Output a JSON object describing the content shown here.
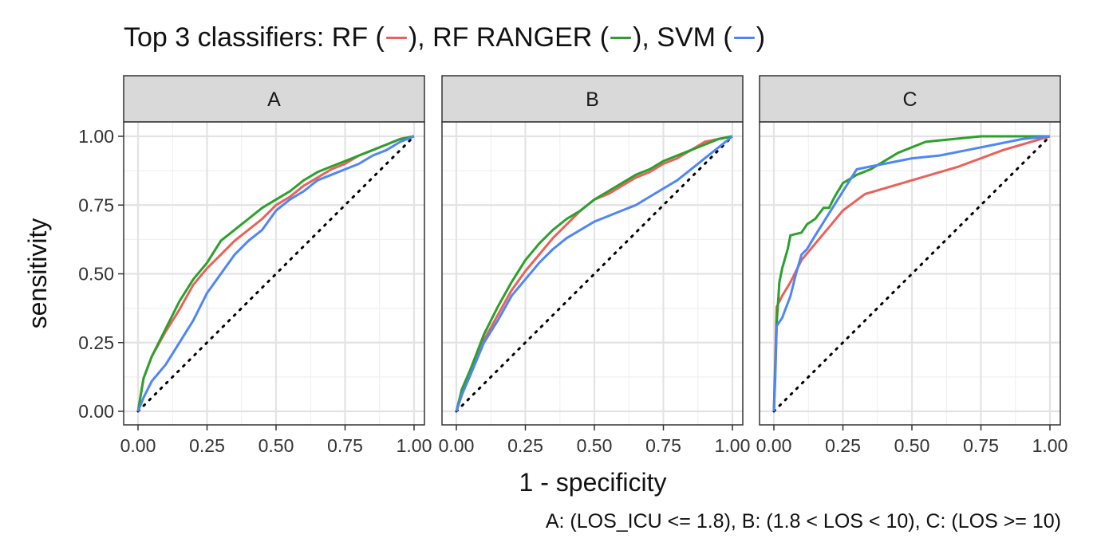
{
  "title": {
    "prefix": "Top 3 classifiers: ",
    "rf_label": "RF (",
    "after_rf": "), RF RANGER (",
    "after_ranger": "), SVM (",
    "end": ")"
  },
  "caption": "A: (LOS_ICU <= 1.8), B: (1.8 < LOS < 10), C: (LOS >= 10)",
  "colors": {
    "RF": "#E8625A",
    "RF RANGER": "#2CA02C",
    "SVM": "#4F86F7"
  },
  "chart_data": {
    "type": "line",
    "xlabel": "1 - specificity",
    "ylabel": "sensitivity",
    "xlim": [
      0,
      1
    ],
    "ylim": [
      0,
      1
    ],
    "xticks": [
      "0.00",
      "0.25",
      "0.50",
      "0.75",
      "1.00"
    ],
    "yticks": [
      "0.00",
      "0.25",
      "0.50",
      "0.75",
      "1.00"
    ],
    "grid": true,
    "reference_line": "dotted diagonal",
    "panels": [
      {
        "name": "A",
        "series": [
          {
            "name": "RF",
            "points": [
              [
                0,
                0
              ],
              [
                0.02,
                0.12
              ],
              [
                0.05,
                0.2
              ],
              [
                0.1,
                0.29
              ],
              [
                0.15,
                0.37
              ],
              [
                0.2,
                0.46
              ],
              [
                0.25,
                0.52
              ],
              [
                0.3,
                0.57
              ],
              [
                0.35,
                0.62
              ],
              [
                0.4,
                0.66
              ],
              [
                0.45,
                0.7
              ],
              [
                0.5,
                0.75
              ],
              [
                0.55,
                0.78
              ],
              [
                0.6,
                0.82
              ],
              [
                0.65,
                0.85
              ],
              [
                0.7,
                0.88
              ],
              [
                0.75,
                0.9
              ],
              [
                0.8,
                0.93
              ],
              [
                0.85,
                0.95
              ],
              [
                0.9,
                0.97
              ],
              [
                0.95,
                0.99
              ],
              [
                1,
                1
              ]
            ]
          },
          {
            "name": "RF RANGER",
            "points": [
              [
                0,
                0
              ],
              [
                0.02,
                0.12
              ],
              [
                0.05,
                0.2
              ],
              [
                0.1,
                0.3
              ],
              [
                0.15,
                0.4
              ],
              [
                0.2,
                0.48
              ],
              [
                0.25,
                0.54
              ],
              [
                0.3,
                0.62
              ],
              [
                0.35,
                0.66
              ],
              [
                0.4,
                0.7
              ],
              [
                0.45,
                0.74
              ],
              [
                0.5,
                0.77
              ],
              [
                0.55,
                0.8
              ],
              [
                0.6,
                0.84
              ],
              [
                0.65,
                0.87
              ],
              [
                0.7,
                0.89
              ],
              [
                0.75,
                0.91
              ],
              [
                0.8,
                0.93
              ],
              [
                0.85,
                0.95
              ],
              [
                0.9,
                0.97
              ],
              [
                0.95,
                0.99
              ],
              [
                1,
                1
              ]
            ]
          },
          {
            "name": "SVM",
            "points": [
              [
                0,
                0
              ],
              [
                0.02,
                0.05
              ],
              [
                0.05,
                0.11
              ],
              [
                0.1,
                0.17
              ],
              [
                0.15,
                0.25
              ],
              [
                0.2,
                0.33
              ],
              [
                0.25,
                0.43
              ],
              [
                0.3,
                0.5
              ],
              [
                0.35,
                0.57
              ],
              [
                0.4,
                0.62
              ],
              [
                0.45,
                0.66
              ],
              [
                0.5,
                0.73
              ],
              [
                0.55,
                0.77
              ],
              [
                0.6,
                0.8
              ],
              [
                0.65,
                0.84
              ],
              [
                0.7,
                0.86
              ],
              [
                0.75,
                0.88
              ],
              [
                0.8,
                0.9
              ],
              [
                0.85,
                0.93
              ],
              [
                0.9,
                0.95
              ],
              [
                0.95,
                0.98
              ],
              [
                1,
                1
              ]
            ]
          }
        ]
      },
      {
        "name": "B",
        "series": [
          {
            "name": "RF",
            "points": [
              [
                0,
                0
              ],
              [
                0.02,
                0.06
              ],
              [
                0.05,
                0.14
              ],
              [
                0.1,
                0.26
              ],
              [
                0.15,
                0.35
              ],
              [
                0.2,
                0.44
              ],
              [
                0.25,
                0.51
              ],
              [
                0.3,
                0.57
              ],
              [
                0.35,
                0.63
              ],
              [
                0.4,
                0.68
              ],
              [
                0.45,
                0.73
              ],
              [
                0.5,
                0.77
              ],
              [
                0.55,
                0.79
              ],
              [
                0.6,
                0.82
              ],
              [
                0.65,
                0.85
              ],
              [
                0.7,
                0.87
              ],
              [
                0.75,
                0.9
              ],
              [
                0.8,
                0.92
              ],
              [
                0.85,
                0.95
              ],
              [
                0.9,
                0.98
              ],
              [
                0.95,
                0.99
              ],
              [
                1,
                1
              ]
            ]
          },
          {
            "name": "RF RANGER",
            "points": [
              [
                0,
                0
              ],
              [
                0.02,
                0.08
              ],
              [
                0.05,
                0.15
              ],
              [
                0.1,
                0.28
              ],
              [
                0.15,
                0.38
              ],
              [
                0.2,
                0.47
              ],
              [
                0.25,
                0.55
              ],
              [
                0.3,
                0.61
              ],
              [
                0.35,
                0.66
              ],
              [
                0.4,
                0.7
              ],
              [
                0.45,
                0.73
              ],
              [
                0.5,
                0.77
              ],
              [
                0.55,
                0.8
              ],
              [
                0.6,
                0.83
              ],
              [
                0.65,
                0.86
              ],
              [
                0.7,
                0.88
              ],
              [
                0.75,
                0.91
              ],
              [
                0.8,
                0.93
              ],
              [
                0.85,
                0.95
              ],
              [
                0.9,
                0.97
              ],
              [
                0.95,
                0.99
              ],
              [
                1,
                1
              ]
            ]
          },
          {
            "name": "SVM",
            "points": [
              [
                0,
                0
              ],
              [
                0.02,
                0.06
              ],
              [
                0.05,
                0.13
              ],
              [
                0.1,
                0.25
              ],
              [
                0.15,
                0.33
              ],
              [
                0.2,
                0.42
              ],
              [
                0.25,
                0.48
              ],
              [
                0.3,
                0.54
              ],
              [
                0.35,
                0.59
              ],
              [
                0.4,
                0.63
              ],
              [
                0.45,
                0.66
              ],
              [
                0.5,
                0.69
              ],
              [
                0.55,
                0.71
              ],
              [
                0.6,
                0.73
              ],
              [
                0.65,
                0.75
              ],
              [
                0.7,
                0.78
              ],
              [
                0.75,
                0.81
              ],
              [
                0.8,
                0.84
              ],
              [
                0.85,
                0.88
              ],
              [
                0.9,
                0.92
              ],
              [
                0.95,
                0.96
              ],
              [
                1,
                1
              ]
            ]
          }
        ]
      },
      {
        "name": "C",
        "series": [
          {
            "name": "RF",
            "points": [
              [
                0,
                0
              ],
              [
                0.01,
                0.38
              ],
              [
                0.03,
                0.42
              ],
              [
                0.06,
                0.47
              ],
              [
                0.1,
                0.55
              ],
              [
                0.15,
                0.61
              ],
              [
                0.2,
                0.67
              ],
              [
                0.25,
                0.73
              ],
              [
                0.33,
                0.79
              ],
              [
                0.5,
                0.84
              ],
              [
                0.67,
                0.89
              ],
              [
                0.83,
                0.95
              ],
              [
                1,
                1
              ]
            ]
          },
          {
            "name": "RF RANGER",
            "points": [
              [
                0,
                0
              ],
              [
                0.005,
                0.15
              ],
              [
                0.01,
                0.32
              ],
              [
                0.02,
                0.47
              ],
              [
                0.03,
                0.52
              ],
              [
                0.05,
                0.59
              ],
              [
                0.06,
                0.64
              ],
              [
                0.1,
                0.65
              ],
              [
                0.12,
                0.68
              ],
              [
                0.15,
                0.7
              ],
              [
                0.18,
                0.74
              ],
              [
                0.2,
                0.74
              ],
              [
                0.22,
                0.78
              ],
              [
                0.25,
                0.83
              ],
              [
                0.3,
                0.86
              ],
              [
                0.35,
                0.88
              ],
              [
                0.4,
                0.91
              ],
              [
                0.45,
                0.94
              ],
              [
                0.55,
                0.98
              ],
              [
                0.75,
                1
              ],
              [
                1,
                1
              ]
            ]
          },
          {
            "name": "SVM",
            "points": [
              [
                0,
                0
              ],
              [
                0.005,
                0.12
              ],
              [
                0.01,
                0.31
              ],
              [
                0.03,
                0.34
              ],
              [
                0.06,
                0.42
              ],
              [
                0.08,
                0.5
              ],
              [
                0.1,
                0.57
              ],
              [
                0.12,
                0.59
              ],
              [
                0.15,
                0.64
              ],
              [
                0.2,
                0.72
              ],
              [
                0.25,
                0.8
              ],
              [
                0.3,
                0.88
              ],
              [
                0.35,
                0.89
              ],
              [
                0.4,
                0.9
              ],
              [
                0.5,
                0.92
              ],
              [
                0.6,
                0.93
              ],
              [
                0.7,
                0.95
              ],
              [
                0.8,
                0.97
              ],
              [
                0.9,
                0.99
              ],
              [
                1,
                1
              ]
            ]
          }
        ]
      }
    ]
  }
}
